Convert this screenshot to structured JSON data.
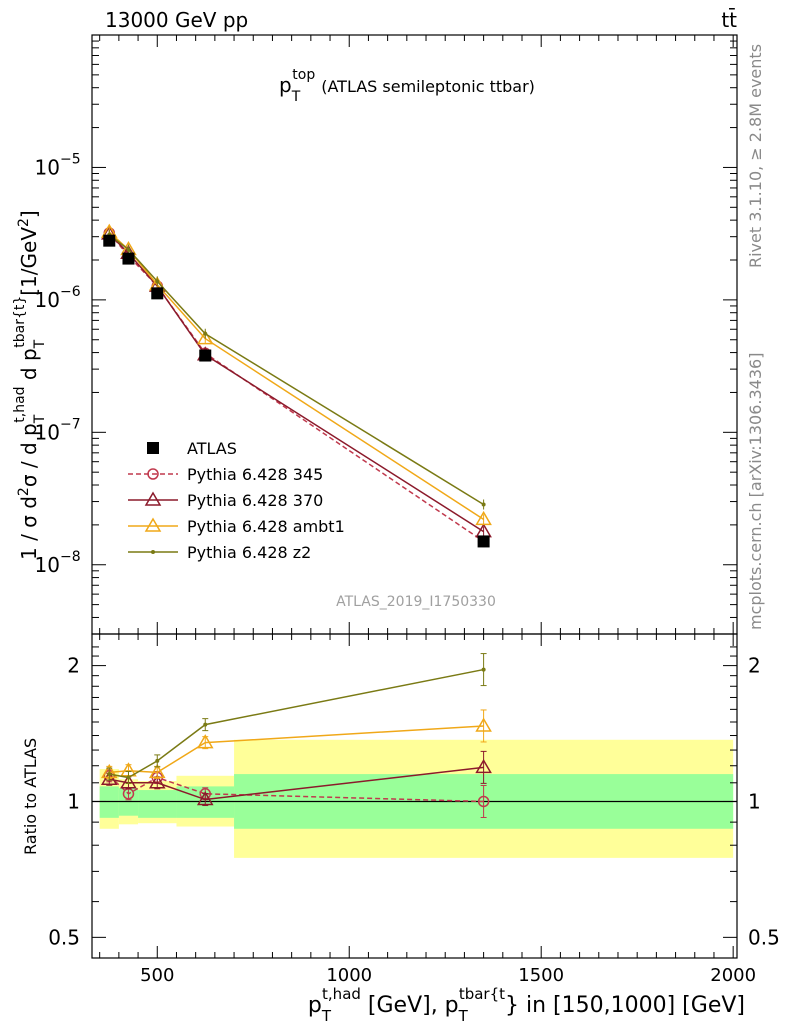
{
  "header": {
    "left": "13000 GeV pp",
    "right": "tt̄"
  },
  "side_labels": {
    "rivet": "Rivet 3.1.10, ≥ 2.8M events",
    "mcplots": "mcplots.cern.ch [arXiv:1306.3436]"
  },
  "chart_data": [
    {
      "type": "line",
      "title": "p_T^top (ATLAS semileptonic ttbar)",
      "title_main": "p",
      "title_sup": "top",
      "title_sub": "T",
      "title_rest": "(ATLAS semileptonic ttbar)",
      "ylabel": "1 / σ d²σ / d p_T^{t,had} d p_T^{tbar{t}} [1/GeV²]",
      "yscale": "log",
      "ylim": [
        3e-09,
        0.0001
      ],
      "xlim": [
        330,
        2010
      ],
      "yticks_major": [
        {
          "value": 1e-08,
          "label": "10",
          "exp": "−8"
        },
        {
          "value": 1e-07,
          "label": "10",
          "exp": "−7"
        },
        {
          "value": 1e-06,
          "label": "10",
          "exp": "−6"
        },
        {
          "value": 1e-05,
          "label": "10",
          "exp": "−5"
        }
      ],
      "analysis_label": "ATLAS_2019_I1750330",
      "x": [
        375,
        425,
        500,
        625,
        1350
      ],
      "series": [
        {
          "name": "ATLAS",
          "color": "#000000",
          "marker": "square",
          "style": "points",
          "values": [
            2.8e-06,
            2.05e-06,
            1.12e-06,
            3.8e-07,
            1.5e-08
          ]
        },
        {
          "name": "Pythia 6.428 345",
          "color": "#c0394d",
          "marker": "circle",
          "style": "dashed",
          "values": [
            3.2e-06,
            2.15e-06,
            1.27e-06,
            3.95e-07,
            1.5e-08
          ]
        },
        {
          "name": "Pythia 6.428 370",
          "color": "#8b1a2b",
          "marker": "triangle",
          "style": "solid",
          "values": [
            3.15e-06,
            2.25e-06,
            1.27e-06,
            3.85e-07,
            1.78e-08
          ]
        },
        {
          "name": "Pythia 6.428 ambt1",
          "color": "#f0a818",
          "marker": "triangle",
          "style": "solid",
          "values": [
            3.25e-06,
            2.4e-06,
            1.3e-06,
            5.1e-07,
            2.2e-08
          ]
        },
        {
          "name": "Pythia 6.428 z2",
          "color": "#7a7a14",
          "marker": "dot",
          "style": "solid",
          "values": [
            3.1e-06,
            2.4e-06,
            1.38e-06,
            5.55e-07,
            2.85e-08
          ]
        }
      ]
    },
    {
      "type": "line",
      "ylabel": "Ratio to ATLAS",
      "yscale": "log",
      "ylim": [
        0.45,
        2.35
      ],
      "xlim": [
        330,
        2010
      ],
      "yticks_major": [
        {
          "value": 0.5,
          "label": "0.5"
        },
        {
          "value": 1,
          "label": "1"
        },
        {
          "value": 2,
          "label": "2"
        }
      ],
      "xticks": [
        {
          "value": 500,
          "label": "500"
        },
        {
          "value": 1000,
          "label": "1000"
        },
        {
          "value": 1500,
          "label": "1500"
        },
        {
          "value": 2000,
          "label": "2000"
        }
      ],
      "xlabel": "p_T^{t,had} [GeV], p_T^{tbar{t}} in [150,1000] [GeV]",
      "xlabel_parts": [
        "p",
        "t,had",
        "T",
        " [GeV], p",
        "tbar{t",
        "T",
        "} in [150,1000] [GeV]"
      ],
      "bands": [
        {
          "x": [
            350,
            400
          ],
          "inner": [
            0.92,
            1.08
          ],
          "outer": [
            0.87,
            1.18
          ]
        },
        {
          "x": [
            400,
            450
          ],
          "inner": [
            0.93,
            1.07
          ],
          "outer": [
            0.89,
            1.12
          ]
        },
        {
          "x": [
            450,
            550
          ],
          "inner": [
            0.92,
            1.06
          ],
          "outer": [
            0.895,
            1.11
          ]
        },
        {
          "x": [
            550,
            700
          ],
          "inner": [
            0.92,
            1.08
          ],
          "outer": [
            0.88,
            1.14
          ]
        },
        {
          "x": [
            700,
            2000
          ],
          "inner": [
            0.87,
            1.15
          ],
          "outer": [
            0.75,
            1.37
          ]
        }
      ],
      "series": [
        {
          "name": "Pythia 6.428 345",
          "values": [
            1.14,
            1.04,
            1.13,
            1.04,
            1.0
          ]
        },
        {
          "name": "Pythia 6.428 370",
          "values": [
            1.12,
            1.1,
            1.1,
            1.01,
            1.19
          ]
        },
        {
          "name": "Pythia 6.428 ambt1",
          "values": [
            1.16,
            1.17,
            1.16,
            1.35,
            1.47
          ]
        },
        {
          "name": "Pythia 6.428 z2",
          "values": [
            1.15,
            1.13,
            1.23,
            1.48,
            1.96
          ]
        }
      ]
    }
  ]
}
